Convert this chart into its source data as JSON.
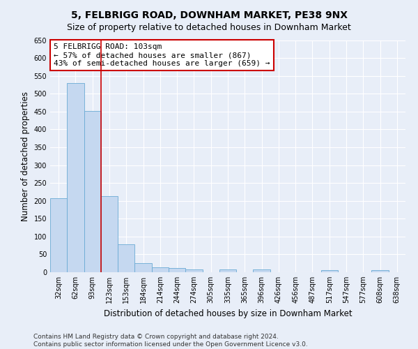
{
  "title": "5, FELBRIGG ROAD, DOWNHAM MARKET, PE38 9NX",
  "subtitle": "Size of property relative to detached houses in Downham Market",
  "xlabel": "Distribution of detached houses by size in Downham Market",
  "ylabel": "Number of detached properties",
  "categories": [
    "32sqm",
    "62sqm",
    "93sqm",
    "123sqm",
    "153sqm",
    "184sqm",
    "214sqm",
    "244sqm",
    "274sqm",
    "305sqm",
    "335sqm",
    "365sqm",
    "396sqm",
    "426sqm",
    "456sqm",
    "487sqm",
    "517sqm",
    "547sqm",
    "577sqm",
    "608sqm",
    "638sqm"
  ],
  "values": [
    207,
    530,
    451,
    213,
    78,
    25,
    14,
    11,
    8,
    0,
    8,
    0,
    7,
    0,
    0,
    0,
    6,
    0,
    0,
    6,
    0
  ],
  "bar_color": "#c5d8f0",
  "bar_edge_color": "#6aaad4",
  "background_color": "#e8eef8",
  "grid_color": "#ffffff",
  "annotation_line1": "5 FELBRIGG ROAD: 103sqm",
  "annotation_line2": "← 57% of detached houses are smaller (867)",
  "annotation_line3": "43% of semi-detached houses are larger (659) →",
  "annotation_box_color": "#ffffff",
  "annotation_box_edge": "#cc0000",
  "vline_color": "#cc0000",
  "vline_x": 2.5,
  "ylim": [
    0,
    650
  ],
  "yticks": [
    0,
    50,
    100,
    150,
    200,
    250,
    300,
    350,
    400,
    450,
    500,
    550,
    600,
    650
  ],
  "footer": "Contains HM Land Registry data © Crown copyright and database right 2024.\nContains public sector information licensed under the Open Government Licence v3.0.",
  "title_fontsize": 10,
  "subtitle_fontsize": 9,
  "xlabel_fontsize": 8.5,
  "ylabel_fontsize": 8.5,
  "tick_fontsize": 7,
  "annotation_fontsize": 8,
  "footer_fontsize": 6.5
}
